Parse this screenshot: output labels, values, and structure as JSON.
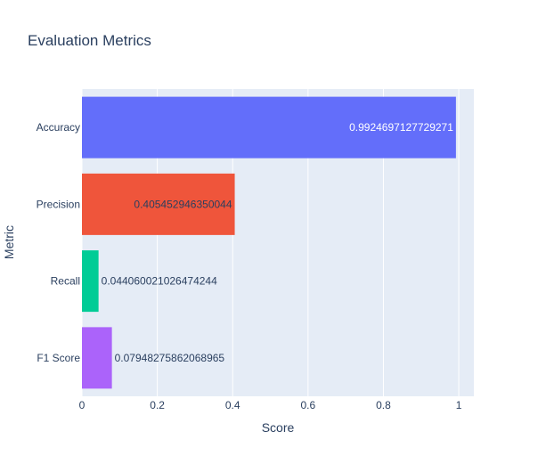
{
  "chart_data": {
    "type": "bar",
    "orientation": "horizontal",
    "title": "Evaluation Metrics",
    "xlabel": "Score",
    "ylabel": "Metric",
    "xlim": [
      0,
      1.04
    ],
    "xticks": [
      0,
      0.2,
      0.4,
      0.6,
      0.8,
      1
    ],
    "xtick_labels": [
      "0",
      "0.2",
      "0.4",
      "0.6",
      "0.8",
      "1"
    ],
    "grid": true,
    "legend": "none",
    "plot_background": "#E5ECF6",
    "categories": [
      "Accuracy",
      "Precision",
      "Recall",
      "F1 Score"
    ],
    "values": [
      0.9924697127729271,
      0.405452946350044,
      0.044060021026474244,
      0.07948275862068965
    ],
    "data_labels": [
      "0.9924697127729271",
      "0.405452946350044",
      "0.044060021026474244",
      "0.07948275862068965"
    ],
    "colors": [
      "#636EFA",
      "#EF553B",
      "#00CC96",
      "#AB63FA"
    ],
    "label_positions": [
      "inside",
      "inside",
      "outside",
      "outside"
    ],
    "label_colors": [
      "#ffffff",
      "#2a3f5f",
      "#2a3f5f",
      "#2a3f5f"
    ]
  }
}
